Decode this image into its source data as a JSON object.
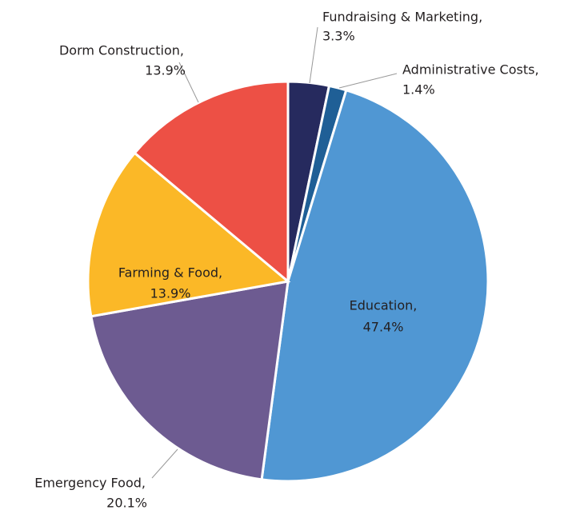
{
  "chart_data": {
    "type": "pie",
    "categories": [
      "Fundraising & Marketing,",
      "Administrative Costs,",
      "Education,",
      "Emergency Food,",
      "Farming & Food,",
      "Dorm Construction,"
    ],
    "values": [
      3.3,
      1.4,
      47.4,
      20.1,
      13.9,
      13.9
    ],
    "value_labels": [
      "3.3%",
      "1.4%",
      "47.4%",
      "20.1%",
      "13.9%",
      "13.9%"
    ],
    "colors": [
      "#262a5e",
      "#1f5f96",
      "#5097d3",
      "#6d5b91",
      "#fbb827",
      "#ed5045"
    ]
  }
}
